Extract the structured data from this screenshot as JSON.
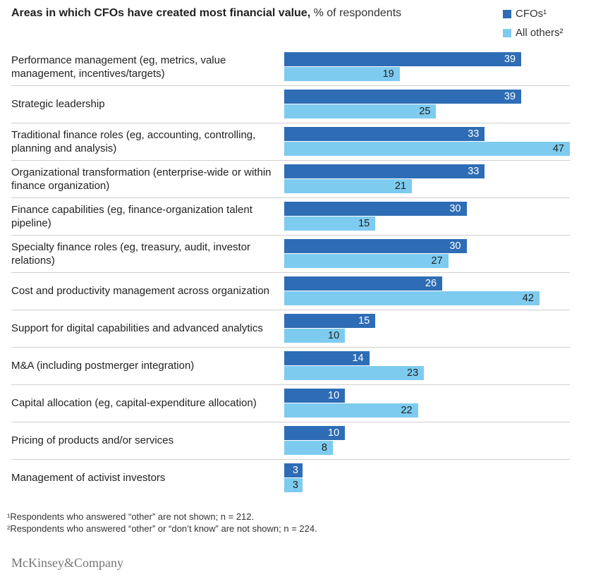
{
  "chart_data": {
    "type": "hbar",
    "title": "Areas in which CFOs have created most financial value,",
    "subtitle": "% of respondents",
    "categories": [
      "Performance management (eg, metrics, value management, incentives/targets)",
      "Strategic leadership",
      "Traditional finance roles (eg, accounting, controlling, planning and analysis)",
      "Organizational transformation (enterprise-wide or within finance organization)",
      "Finance capabilities (eg, finance-organization talent pipeline)",
      "Specialty finance roles (eg, treasury, audit, investor relations)",
      "Cost and productivity management across organization",
      "Support for digital capabilities and advanced analytics",
      "M&A (including postmerger integration)",
      "Capital allocation (eg, capital-expenditure allocation)",
      "Pricing of products and/or services",
      "Management of activist investors"
    ],
    "series": [
      {
        "name": "CFOs¹",
        "color": "#2e6db5",
        "label_color": "#ffffff",
        "values": [
          39,
          39,
          33,
          33,
          30,
          30,
          26,
          15,
          14,
          10,
          10,
          3
        ]
      },
      {
        "name": "All others²",
        "color": "#7ecbf0",
        "label_color": "#222222",
        "values": [
          19,
          25,
          47,
          21,
          15,
          27,
          42,
          10,
          23,
          22,
          8,
          3
        ]
      }
    ],
    "footnotes": [
      "¹Respondents who answered “other” are not shown; n = 212.",
      "²Respondents who answered “other” or “don’t know” are not shown; n = 224."
    ],
    "source": "McKinsey&Company"
  }
}
